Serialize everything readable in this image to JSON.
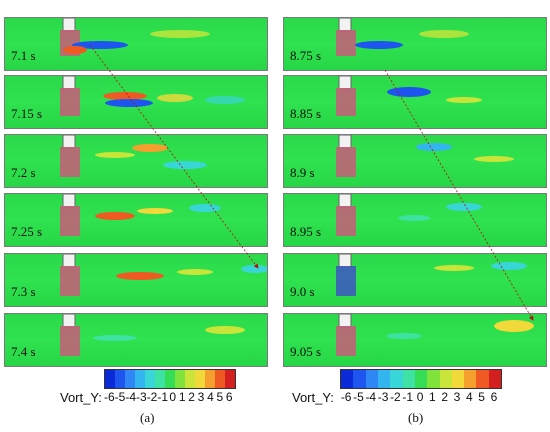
{
  "left": {
    "times": [
      "7.1 s",
      "7.15 s",
      "7.2 s",
      "7.25 s",
      "7.3 s",
      "7.4 s"
    ],
    "caption": "(a)"
  },
  "right": {
    "times": [
      "8.75 s",
      "8.85 s",
      "8.9 s",
      "8.95 s",
      "9.0 s",
      "9.05 s"
    ],
    "caption": "(b)"
  },
  "legend": {
    "label": "Vort_Y:",
    "ticks": [
      "-6",
      "-5",
      "-4",
      "-3",
      "-2",
      "-1",
      "0",
      "1",
      "2",
      "3",
      "4",
      "5",
      "6"
    ],
    "colors": [
      "#0b2bd8",
      "#1f55ef",
      "#2f86f5",
      "#33b5f0",
      "#38d6d6",
      "#3ee3a4",
      "#35dc55",
      "#7fe33b",
      "#c9e53a",
      "#f2d93a",
      "#f5a02e",
      "#ef5a22",
      "#d31f1f"
    ]
  }
}
